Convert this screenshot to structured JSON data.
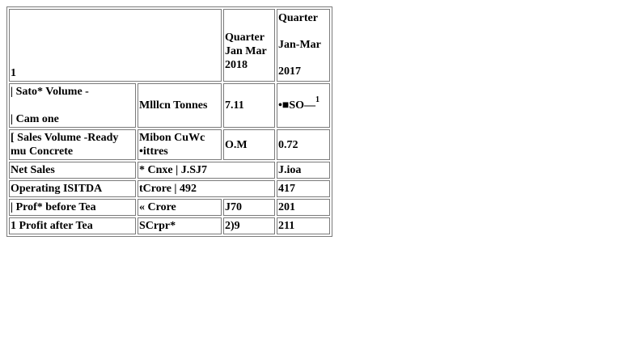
{
  "table": {
    "header": {
      "col1": "1",
      "col3": [
        "Quarter",
        "Jan Mar",
        "2018"
      ],
      "col4": [
        "Quarter",
        "Jan-Mar",
        "2017"
      ]
    },
    "rows": [
      {
        "label_line1": "| Sato* Volume -",
        "label_line2": "| Cam one",
        "unit": "Mlllcn Tonnes",
        "q2018": "7.11",
        "q2017": "•■SO—",
        "q2017_sup": "1"
      },
      {
        "label": "[ Sales Volume -Ready mu Concrete",
        "unit": "Mibon CuWc •ittres",
        "q2018": "O.M",
        "q2017": "0.72"
      },
      {
        "label": "Net Sales",
        "unit_merged": "* Cnxe | J.SJ7",
        "q2017": "J.ioa"
      },
      {
        "label": "Operating ISITDA",
        "unit_merged": "tCrore | 492",
        "q2017": "417"
      },
      {
        "label": "| Prof* before Tea",
        "unit": "« Crore",
        "q2018": "J70",
        "q2017": "201"
      },
      {
        "label": "1 Profit after Tea",
        "unit": "SCrpr*",
        "q2018": "2)9",
        "q2017": "211"
      }
    ]
  }
}
